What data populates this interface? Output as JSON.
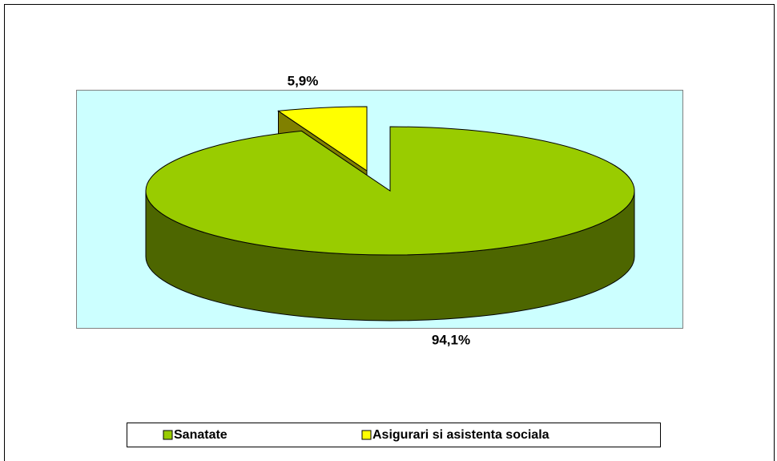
{
  "chart_data": {
    "type": "pie",
    "categories": [
      "Sanatate",
      "Asigurari si asistenta sociala"
    ],
    "values": [
      94.1,
      5.9
    ],
    "value_labels": [
      "94,1%",
      "5,9%"
    ],
    "colors": [
      "#99cc00",
      "#ffff00"
    ],
    "legend": "bottom"
  }
}
